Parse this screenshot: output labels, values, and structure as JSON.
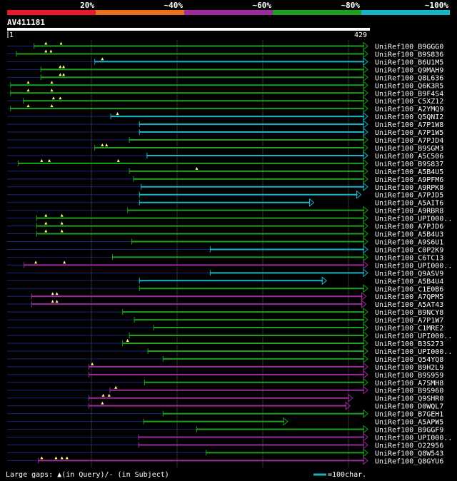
{
  "query_name": "AV411181",
  "query_length": 429,
  "range": {
    "start_label": "1",
    "end_label": "429"
  },
  "legend": {
    "gaps_text": "Large gaps: ▲(in Query)/- (in Subject)",
    "scale_text": "=100char."
  },
  "colors": {
    "background": "#000000",
    "grid": "#333333",
    "guide": "#1a237e",
    "band_20": "#e8192c",
    "band_40": "#e8721c",
    "band_60": "#9e2a9e",
    "band_80": "#1ea01e",
    "band_100": "#19b4c8",
    "marker": "#ffff80",
    "text": "#ffffff"
  },
  "chart_data": {
    "type": "alignment-overview",
    "title": "AV411181",
    "axis": {
      "min": 1,
      "max": 429
    },
    "identity_bands": [
      {
        "label": "20%",
        "color": "#e8192c"
      },
      {
        "label": "~40%",
        "color": "#e8721c"
      },
      {
        "label": "~60%",
        "color": "#9e2a9e"
      },
      {
        "label": "~80%",
        "color": "#1ea01e"
      },
      {
        "label": "~100%",
        "color": "#19b4c8"
      }
    ],
    "hits": [
      {
        "name": "UniRef100_B9GGG0",
        "start": 33,
        "end": 429,
        "identity": 80,
        "gaps": [
          47,
          65
        ]
      },
      {
        "name": "UniRef100_B9S836",
        "start": 12,
        "end": 429,
        "identity": 80,
        "gaps": [
          47,
          53
        ]
      },
      {
        "name": "UniRef100_B6U1M5",
        "start": 105,
        "end": 429,
        "identity": 100,
        "gaps": [
          114
        ]
      },
      {
        "name": "UniRef100_Q9MAH9",
        "start": 41,
        "end": 429,
        "identity": 80,
        "gaps": [
          64,
          68
        ]
      },
      {
        "name": "UniRef100_Q8L636",
        "start": 41,
        "end": 429,
        "identity": 80,
        "gaps": [
          64,
          68
        ]
      },
      {
        "name": "UniRef100_Q6K3R5",
        "start": 5,
        "end": 429,
        "identity": 80,
        "gaps": [
          26,
          54
        ]
      },
      {
        "name": "UniRef100_B9F4S4",
        "start": 5,
        "end": 429,
        "identity": 80,
        "gaps": [
          26,
          54
        ]
      },
      {
        "name": "UniRef100_C5XZ12",
        "start": 20,
        "end": 429,
        "identity": 80,
        "gaps": [
          56,
          64
        ]
      },
      {
        "name": "UniRef100_A2YMQ9",
        "start": 5,
        "end": 429,
        "identity": 80,
        "gaps": [
          26,
          54
        ]
      },
      {
        "name": "UniRef100_Q5QNI2",
        "start": 124,
        "end": 429,
        "identity": 100,
        "gaps": [
          132
        ]
      },
      {
        "name": "UniRef100_A7P1W8",
        "start": 158,
        "end": 429,
        "identity": 100,
        "gaps": []
      },
      {
        "name": "UniRef100_A7P1W5",
        "start": 158,
        "end": 429,
        "identity": 100,
        "gaps": []
      },
      {
        "name": "UniRef100_A7PJD4",
        "start": 146,
        "end": 429,
        "identity": 80,
        "gaps": []
      },
      {
        "name": "UniRef100_B9SGM3",
        "start": 105,
        "end": 429,
        "identity": 80,
        "gaps": [
          114,
          119
        ]
      },
      {
        "name": "UniRef100_A5C506",
        "start": 167,
        "end": 429,
        "identity": 100,
        "gaps": []
      },
      {
        "name": "UniRef100_B9S837",
        "start": 14,
        "end": 429,
        "identity": 80,
        "gaps": [
          42,
          51,
          133
        ]
      },
      {
        "name": "UniRef100_A5B4U5",
        "start": 146,
        "end": 429,
        "identity": 80,
        "gaps": [
          226
        ]
      },
      {
        "name": "UniRef100_A9PFM6",
        "start": 151,
        "end": 429,
        "identity": 80,
        "gaps": []
      },
      {
        "name": "UniRef100_A9RPK8",
        "start": 160,
        "end": 429,
        "identity": 100,
        "gaps": []
      },
      {
        "name": "UniRef100_A7PJD5",
        "start": 158,
        "end": 421,
        "identity": 100,
        "gaps": []
      },
      {
        "name": "UniRef100_A5AIT6",
        "start": 158,
        "end": 365,
        "identity": 100,
        "gaps": []
      },
      {
        "name": "UniRef100_A9RBR8",
        "start": 144,
        "end": 429,
        "identity": 80,
        "gaps": []
      },
      {
        "name": "UniRef100_UPI000..",
        "start": 36,
        "end": 429,
        "identity": 80,
        "gaps": [
          47,
          66
        ]
      },
      {
        "name": "UniRef100_A7PJD6",
        "start": 36,
        "end": 429,
        "identity": 80,
        "gaps": [
          47,
          66
        ]
      },
      {
        "name": "UniRef100_A5B4U3",
        "start": 36,
        "end": 429,
        "identity": 80,
        "gaps": [
          47,
          66
        ]
      },
      {
        "name": "UniRef100_A9S6U1",
        "start": 149,
        "end": 429,
        "identity": 80,
        "gaps": []
      },
      {
        "name": "UniRef100_C0P2K9",
        "start": 242,
        "end": 429,
        "identity": 100,
        "gaps": []
      },
      {
        "name": "UniRef100_C6TC13",
        "start": 126,
        "end": 429,
        "identity": 80,
        "gaps": []
      },
      {
        "name": "UniRef100_UPI000..",
        "start": 21,
        "end": 429,
        "identity": 60,
        "gaps": [
          35,
          69
        ]
      },
      {
        "name": "UniRef100_Q9ASV9",
        "start": 242,
        "end": 429,
        "identity": 100,
        "gaps": []
      },
      {
        "name": "UniRef100_A5B4U4",
        "start": 158,
        "end": 380,
        "identity": 100,
        "gaps": []
      },
      {
        "name": "UniRef100_C1E0B6",
        "start": 158,
        "end": 429,
        "identity": 80,
        "gaps": []
      },
      {
        "name": "UniRef100_A7QPM5",
        "start": 30,
        "end": 427,
        "identity": 60,
        "gaps": [
          55,
          60
        ]
      },
      {
        "name": "UniRef100_A5AT43",
        "start": 30,
        "end": 427,
        "identity": 60,
        "gaps": [
          55,
          60
        ]
      },
      {
        "name": "UniRef100_B9NCY8",
        "start": 138,
        "end": 429,
        "identity": 80,
        "gaps": []
      },
      {
        "name": "UniRef100_A7P1W7",
        "start": 152,
        "end": 429,
        "identity": 80,
        "gaps": []
      },
      {
        "name": "UniRef100_C1MRE2",
        "start": 175,
        "end": 429,
        "identity": 80,
        "gaps": []
      },
      {
        "name": "UniRef100_UPI000..",
        "start": 146,
        "end": 429,
        "identity": 80,
        "gaps": []
      },
      {
        "name": "UniRef100_B3S273",
        "start": 138,
        "end": 429,
        "identity": 80,
        "gaps": [
          144
        ]
      },
      {
        "name": "UniRef100_UPI000..",
        "start": 168,
        "end": 429,
        "identity": 80,
        "gaps": []
      },
      {
        "name": "UniRef100_Q54YQ8",
        "start": 186,
        "end": 429,
        "identity": 80,
        "gaps": []
      },
      {
        "name": "UniRef100_B9H2L9",
        "start": 98,
        "end": 429,
        "identity": 60,
        "gaps": [
          102
        ]
      },
      {
        "name": "UniRef100_B9S959",
        "start": 98,
        "end": 429,
        "identity": 60,
        "gaps": []
      },
      {
        "name": "UniRef100_A7SMH8",
        "start": 164,
        "end": 429,
        "identity": 80,
        "gaps": []
      },
      {
        "name": "UniRef100_B9S960",
        "start": 123,
        "end": 429,
        "identity": 60,
        "gaps": [
          130
        ]
      },
      {
        "name": "UniRef100_Q9SHR0",
        "start": 98,
        "end": 411,
        "identity": 60,
        "gaps": [
          115,
          122
        ]
      },
      {
        "name": "UniRef100_D0WQL7",
        "start": 98,
        "end": 408,
        "identity": 60,
        "gaps": [
          114
        ]
      },
      {
        "name": "UniRef100_B7GEH1",
        "start": 186,
        "end": 429,
        "identity": 80,
        "gaps": []
      },
      {
        "name": "UniRef100_A5APW5",
        "start": 163,
        "end": 334,
        "identity": 80,
        "gaps": []
      },
      {
        "name": "UniRef100_B9GGF9",
        "start": 226,
        "end": 429,
        "identity": 80,
        "gaps": []
      },
      {
        "name": "UniRef100_UPI000..",
        "start": 157,
        "end": 429,
        "identity": 60,
        "gaps": []
      },
      {
        "name": "UniRef100_O22956",
        "start": 157,
        "end": 429,
        "identity": 60,
        "gaps": []
      },
      {
        "name": "UniRef100_Q8W543",
        "start": 237,
        "end": 429,
        "identity": 80,
        "gaps": []
      },
      {
        "name": "UniRef100_Q8GYU6",
        "start": 38,
        "end": 429,
        "identity": 60,
        "gaps": [
          42,
          59,
          66,
          72
        ]
      }
    ]
  }
}
